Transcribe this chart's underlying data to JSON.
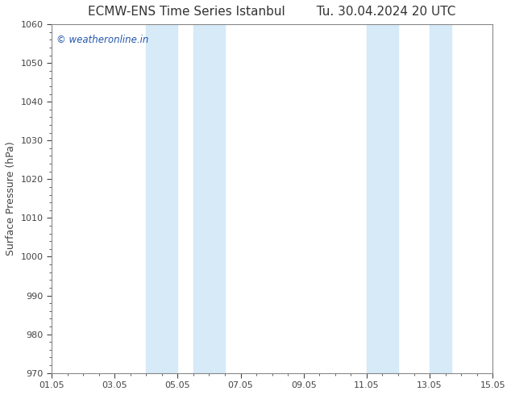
{
  "title": "ECMW-ENS Time Series Istanbul",
  "title2": "Tu. 30.04.2024 20 UTC",
  "ylabel": "Surface Pressure (hPa)",
  "ylim": [
    970,
    1060
  ],
  "yticks": [
    970,
    980,
    990,
    1000,
    1010,
    1020,
    1030,
    1040,
    1050,
    1060
  ],
  "xlim_start": 0,
  "xlim_end": 14,
  "xtick_labels": [
    "01.05",
    "03.05",
    "05.05",
    "07.05",
    "09.05",
    "11.05",
    "13.05",
    "15.05"
  ],
  "xtick_positions": [
    0,
    2,
    4,
    6,
    8,
    10,
    12,
    14
  ],
  "shaded_regions": [
    {
      "xmin": 3.0,
      "xmax": 4.0,
      "color": "#d6eaf8"
    },
    {
      "xmin": 4.5,
      "xmax": 5.5,
      "color": "#d6eaf8"
    },
    {
      "xmin": 10.0,
      "xmax": 11.0,
      "color": "#d6eaf8"
    },
    {
      "xmin": 12.0,
      "xmax": 12.7,
      "color": "#d6eaf8"
    }
  ],
  "watermark": "© weatheronline.in",
  "watermark_color": "#2255aa",
  "bg_color": "#ffffff",
  "plot_bg_color": "#ffffff",
  "tick_color": "#444444",
  "title_color": "#333333",
  "border_color": "#888888"
}
